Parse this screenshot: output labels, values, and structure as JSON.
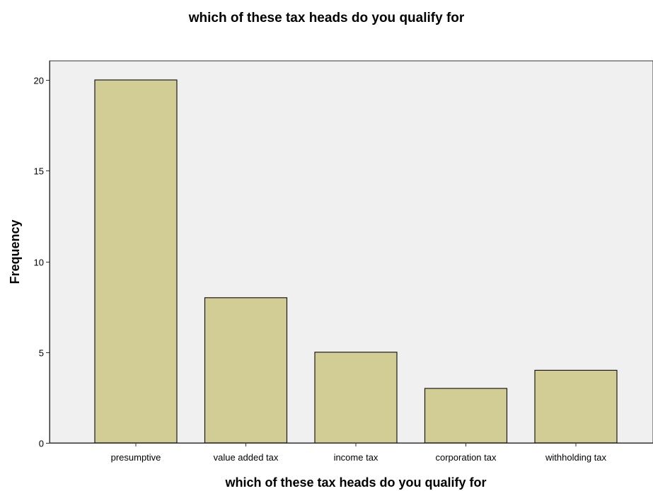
{
  "chart_data": {
    "type": "bar",
    "title": "which of these tax heads do you qualify for",
    "xlabel": "which of these tax heads do you qualify for",
    "ylabel": "Frequency",
    "categories": [
      "presumptive",
      "value added tax",
      "income tax",
      "corporation tax",
      "withholding tax"
    ],
    "values": [
      20,
      8,
      5,
      3,
      4
    ],
    "ylim": [
      0,
      20
    ],
    "yticks": [
      0,
      5,
      10,
      15,
      20
    ],
    "grid": false,
    "legend": "none",
    "colors": {
      "bar_fill": "#d2cc95",
      "bar_stroke": "#1a1a1a",
      "plot_background": "#f0f0f0",
      "axis": "#333333"
    }
  }
}
